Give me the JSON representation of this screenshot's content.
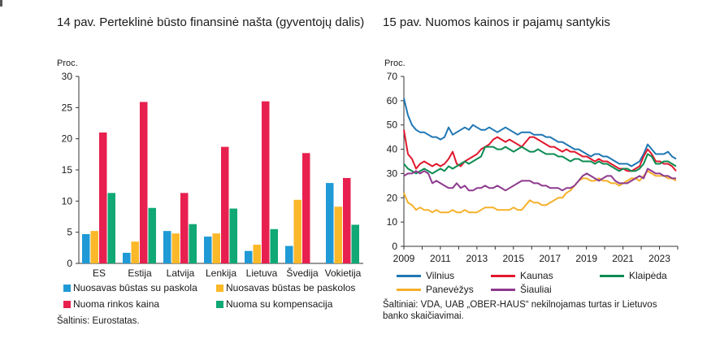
{
  "figure14": {
    "title": "14 pav. Perteklinė būsto finansinė našta (gyventojų dalis)",
    "unit": "Proc.",
    "source": "Šaltinis: Eurostatas.",
    "chart_data": {
      "type": "bar",
      "categories": [
        "ES",
        "Estija",
        "Latvija",
        "Lenkija",
        "Lietuva",
        "Švedija",
        "Vokietija"
      ],
      "ylim": [
        0,
        30
      ],
      "yticks": [
        0,
        5,
        10,
        15,
        20,
        25,
        30
      ],
      "grid": false,
      "legend_position": "bottom",
      "series": [
        {
          "name": "Nuosavas būstas su paskola",
          "color": "#1f9ad6",
          "values": [
            4.7,
            1.7,
            5.2,
            4.3,
            2.0,
            2.8,
            12.9
          ]
        },
        {
          "name": "Nuosavas būstas be paskolos",
          "color": "#fbb829",
          "values": [
            5.2,
            3.5,
            4.8,
            4.8,
            3.0,
            10.2,
            9.1
          ]
        },
        {
          "name": "Nuoma rinkos kaina",
          "color": "#e8204f",
          "values": [
            21.0,
            25.9,
            11.3,
            18.7,
            26.0,
            17.7,
            13.7
          ]
        },
        {
          "name": "Nuoma su kompensacija",
          "color": "#10a874",
          "values": [
            11.3,
            8.9,
            6.3,
            8.8,
            5.5,
            0,
            6.2
          ]
        }
      ]
    }
  },
  "figure15": {
    "title": "15 pav. Nuomos kainos ir pajamų santykis",
    "unit": "Proc.",
    "source": "Šaltiniai: VDA, UAB „OBER-HAUS“ nekilnojamas turtas ir Lietuvos\nbanko skaičiavimai.",
    "chart_data": {
      "type": "line",
      "x_start": "2009",
      "x_end": "2024",
      "xticks": [
        "2009",
        "2011",
        "2013",
        "2015",
        "2017",
        "2019",
        "2021",
        "2023"
      ],
      "ylim": [
        0,
        70
      ],
      "yticks": [
        0,
        10,
        20,
        30,
        40,
        50,
        60,
        70
      ],
      "grid": false,
      "legend_position": "bottom",
      "series": [
        {
          "name": "Vilnius",
          "color": "#1f77b4",
          "values": [
            61,
            54,
            50,
            48,
            47,
            47,
            46,
            45,
            45,
            44,
            45,
            49,
            46,
            47,
            48,
            49,
            48,
            50,
            49,
            48,
            48,
            49,
            48,
            47,
            48,
            49,
            48,
            47,
            46,
            47,
            47,
            47,
            46,
            46,
            46,
            45,
            45,
            44,
            43,
            43,
            42,
            41,
            40,
            40,
            39,
            38,
            37,
            38,
            38,
            37,
            37,
            36,
            35,
            34,
            34,
            34,
            33,
            34,
            35,
            38,
            42,
            40,
            38,
            38,
            38,
            39,
            37,
            36
          ]
        },
        {
          "name": "Kaunas",
          "color": "#e0182d",
          "values": [
            48,
            38,
            36,
            32,
            34,
            35,
            34,
            33,
            34,
            33,
            34,
            36,
            39,
            34,
            33,
            35,
            36,
            37,
            38,
            40,
            41,
            42,
            44,
            45,
            44,
            43,
            44,
            43,
            42,
            41,
            43,
            45,
            45,
            44,
            43,
            42,
            41,
            41,
            40,
            39,
            40,
            39,
            39,
            38,
            37,
            37,
            36,
            35,
            36,
            35,
            35,
            34,
            33,
            32,
            32,
            31,
            31,
            32,
            33,
            37,
            40,
            38,
            35,
            35,
            34,
            34,
            33,
            31
          ]
        },
        {
          "name": "Klaipėda",
          "color": "#0d8c53",
          "values": [
            34,
            32,
            31,
            30,
            31,
            32,
            31,
            30,
            31,
            32,
            31,
            33,
            32,
            33,
            34,
            35,
            34,
            35,
            36,
            37,
            41,
            41,
            41,
            40,
            40,
            41,
            40,
            39,
            40,
            41,
            40,
            39,
            39,
            40,
            39,
            38,
            38,
            38,
            37,
            37,
            36,
            35,
            36,
            36,
            35,
            35,
            35,
            34,
            35,
            34,
            34,
            33,
            32,
            31,
            32,
            32,
            31,
            31,
            32,
            34,
            38,
            37,
            34,
            34,
            35,
            35,
            34,
            33
          ]
        },
        {
          "name": "Panevėžys",
          "color": "#f5b02a",
          "values": [
            22,
            18,
            17,
            15,
            16,
            15,
            15,
            14,
            15,
            14,
            14,
            14,
            15,
            14,
            14,
            15,
            14,
            14,
            14,
            15,
            16,
            16,
            16,
            15,
            15,
            15,
            15,
            16,
            15,
            15,
            17,
            19,
            18,
            18,
            17,
            17,
            18,
            19,
            20,
            20,
            22,
            23,
            25,
            27,
            28,
            28,
            27,
            27,
            28,
            27,
            27,
            26,
            26,
            25,
            26,
            27,
            28,
            28,
            27,
            29,
            31,
            30,
            29,
            29,
            29,
            28,
            28,
            27
          ]
        },
        {
          "name": "Šiauliai",
          "color": "#8e3a8e",
          "values": [
            29,
            30,
            30,
            31,
            30,
            31,
            30,
            26,
            27,
            26,
            25,
            24,
            24,
            26,
            24,
            25,
            23,
            23,
            24,
            24,
            25,
            24,
            24,
            25,
            24,
            23,
            24,
            25,
            26,
            27,
            27,
            27,
            26,
            26,
            25,
            25,
            24,
            24,
            24,
            23,
            24,
            24,
            25,
            27,
            29,
            30,
            29,
            28,
            27,
            28,
            29,
            29,
            27,
            26,
            26,
            26,
            27,
            28,
            29,
            28,
            32,
            31,
            30,
            30,
            29,
            29,
            28,
            28
          ]
        }
      ]
    }
  }
}
